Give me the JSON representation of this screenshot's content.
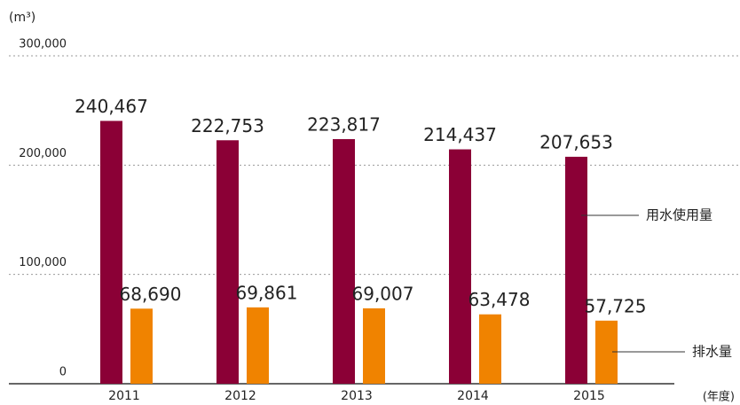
{
  "chart_data": {
    "type": "bar",
    "y_unit_label": "(m³)",
    "x_axis_label": "(年度)",
    "categories": [
      "2011",
      "2012",
      "2013",
      "2014",
      "2015"
    ],
    "series": [
      {
        "name": "用水使用量",
        "color": "#8b0036",
        "values": [
          240467,
          222753,
          223817,
          214437,
          207653
        ],
        "value_labels": [
          "240,467",
          "222,753",
          "223,817",
          "214,437",
          "207,653"
        ]
      },
      {
        "name": "排水量",
        "color": "#f08300",
        "values": [
          68690,
          69861,
          69007,
          63478,
          57725
        ],
        "value_labels": [
          "68,690",
          "69,861",
          "69,007",
          "63,478",
          "57,725"
        ]
      }
    ],
    "ylim": [
      0,
      300000
    ],
    "yticks": [
      {
        "value": 0,
        "label": "0"
      },
      {
        "value": 100000,
        "label": "100,000"
      },
      {
        "value": 200000,
        "label": "200,000"
      },
      {
        "value": 300000,
        "label": "300,000"
      }
    ],
    "grid": true
  }
}
